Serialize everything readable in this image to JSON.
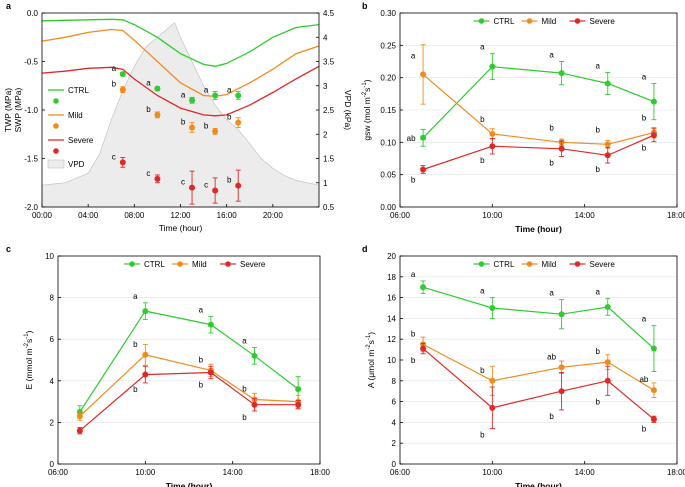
{
  "chart_data": [
    {
      "panel": "a",
      "type": "line",
      "title": "",
      "xlabel": "Time (hour)",
      "ylabel": "TWP (MPa)",
      "ylabel2": "SWP (MPa)",
      "y2label": "VPD (kPa)",
      "xlim": [
        0,
        24
      ],
      "ylim": [
        -2.0,
        0.0
      ],
      "y2lim": [
        0.5,
        4.5
      ],
      "xticks": [
        0,
        4,
        8,
        12,
        16,
        20
      ],
      "xtick_labels": [
        "00:00",
        "04:00",
        "08:00",
        "12:00",
        "16:00",
        "20:00"
      ],
      "yticks": [
        0.0,
        -0.5,
        -1.0,
        -1.5,
        -2.0
      ],
      "ytick_labels": [
        "0.0",
        "-0.5",
        "-1.0",
        "-1.5",
        "-2.0"
      ],
      "y2ticks": [
        0.5,
        1.0,
        1.5,
        2.0,
        2.5,
        3.0,
        3.5,
        4.0,
        4.5
      ],
      "y2tick_labels": [
        "0.5",
        "1",
        "1.5",
        "2",
        "2.5",
        "3",
        "3.5",
        "4",
        "4.5"
      ],
      "legend": [
        "CTRL",
        "Mild",
        "Severe",
        "VPD"
      ],
      "lines": [
        {
          "name": "CTRL",
          "color": "#2ecc2e",
          "x": [
            0,
            2,
            4,
            6,
            7,
            8,
            10,
            12,
            14,
            15,
            16,
            18,
            20,
            22,
            24
          ],
          "y": [
            -0.08,
            -0.075,
            -0.07,
            -0.065,
            -0.07,
            -0.12,
            -0.25,
            -0.42,
            -0.53,
            -0.55,
            -0.52,
            -0.4,
            -0.25,
            -0.15,
            -0.12
          ]
        },
        {
          "name": "Mild",
          "color": "#f08c1e",
          "x": [
            0,
            2,
            4,
            6,
            7,
            8,
            10,
            12,
            14,
            15,
            16,
            18,
            20,
            22,
            24
          ],
          "y": [
            -0.29,
            -0.25,
            -0.2,
            -0.17,
            -0.18,
            -0.28,
            -0.5,
            -0.72,
            -0.85,
            -0.86,
            -0.84,
            -0.72,
            -0.58,
            -0.42,
            -0.34
          ]
        },
        {
          "name": "Severe",
          "color": "#e02828",
          "x": [
            0,
            2,
            4,
            6,
            7,
            8,
            10,
            12,
            14,
            15,
            16,
            18,
            20,
            22,
            24
          ],
          "y": [
            -0.62,
            -0.6,
            -0.57,
            -0.56,
            -0.58,
            -0.68,
            -0.85,
            -0.98,
            -1.05,
            -1.06,
            -1.05,
            -0.95,
            -0.82,
            -0.68,
            -0.55
          ]
        }
      ],
      "vpd_area": {
        "name": "VPD",
        "x": [
          0,
          2,
          4,
          5,
          6,
          7,
          8,
          9,
          10,
          10.5,
          11,
          11.5,
          12,
          13,
          14,
          15,
          16,
          17,
          18,
          19,
          20,
          21,
          22,
          23,
          24
        ],
        "y": [
          0.95,
          1.0,
          1.2,
          1.6,
          2.3,
          2.9,
          3.4,
          3.8,
          4.0,
          4.1,
          4.2,
          4.3,
          4.0,
          3.5,
          3.0,
          2.6,
          2.3,
          2.1,
          1.8,
          1.5,
          1.3,
          1.15,
          1.05,
          1.0,
          0.95
        ]
      },
      "points": [
        {
          "name": "CTRL",
          "color": "#2ecc2e",
          "x": [
            7,
            10,
            13,
            15,
            17
          ],
          "y": [
            -0.63,
            -0.78,
            -0.9,
            -0.85,
            -0.85
          ],
          "err": [
            0.02,
            0.02,
            0.03,
            0.04,
            0.04
          ],
          "labels": [
            "a",
            "a",
            "a",
            "a",
            "a"
          ]
        },
        {
          "name": "Mild",
          "color": "#f08c1e",
          "x": [
            7,
            10,
            13,
            15,
            17
          ],
          "y": [
            -0.79,
            -1.05,
            -1.18,
            -1.22,
            -1.13
          ],
          "err": [
            0.03,
            0.03,
            0.05,
            0.03,
            0.05
          ],
          "labels": [
            "b",
            "b",
            "b",
            "b",
            "b"
          ]
        },
        {
          "name": "Severe",
          "color": "#e02828",
          "x": [
            7,
            10,
            13,
            15,
            17
          ],
          "y": [
            -1.54,
            -1.71,
            -1.8,
            -1.83,
            -1.78
          ],
          "err": [
            0.05,
            0.04,
            0.17,
            0.13,
            0.16
          ],
          "labels": [
            "c",
            "c",
            "c",
            "c",
            "b"
          ]
        }
      ]
    },
    {
      "panel": "b",
      "type": "line",
      "xlabel": "Time (hour)",
      "ylabel": "gsw (mol m-2 s-1)",
      "ylabel_main": "gsw (mol m",
      "ylabel_mid": "s",
      "ylabel_sup1": "-2",
      "ylabel_sup2": "-1",
      "ylabel_end": ")",
      "xlim": [
        6,
        18
      ],
      "ylim": [
        0,
        0.3
      ],
      "xticks": [
        6,
        10,
        14,
        18
      ],
      "xtick_labels": [
        "06:00",
        "10:00",
        "14:00",
        "18:00"
      ],
      "yticks": [
        0,
        0.05,
        0.1,
        0.15,
        0.2,
        0.25,
        0.3
      ],
      "ytick_labels": [
        "0.00",
        "0.05",
        "0.10",
        "0.15",
        "0.20",
        "0.25",
        "0.30"
      ],
      "legend": [
        "CTRL",
        "Mild",
        "Severe"
      ],
      "series": [
        {
          "name": "CTRL",
          "color": "#2ecc2e",
          "x": [
            7,
            10,
            13,
            15,
            17
          ],
          "y": [
            0.107,
            0.217,
            0.207,
            0.191,
            0.163
          ],
          "err": [
            0.013,
            0.02,
            0.018,
            0.017,
            0.028
          ],
          "labels": [
            "ab",
            "a",
            "a",
            "a",
            "a"
          ]
        },
        {
          "name": "Mild",
          "color": "#f08c1e",
          "x": [
            7,
            10,
            13,
            15,
            17
          ],
          "y": [
            0.205,
            0.113,
            0.1,
            0.097,
            0.115
          ],
          "err": [
            0.046,
            0.008,
            0.005,
            0.006,
            0.008
          ],
          "labels": [
            "a",
            "b",
            "b",
            "b",
            "b"
          ]
        },
        {
          "name": "Severe",
          "color": "#e02828",
          "x": [
            7,
            10,
            13,
            15,
            17
          ],
          "y": [
            0.058,
            0.094,
            0.09,
            0.08,
            0.111
          ],
          "err": [
            0.006,
            0.012,
            0.012,
            0.012,
            0.01
          ],
          "labels": [
            "b",
            "b",
            "b",
            "b",
            "b"
          ]
        }
      ]
    },
    {
      "panel": "c",
      "type": "line",
      "xlabel": "Time (hour)",
      "ylabel": "E (mmol m-2 s-1)",
      "ylabel_main": "E (mmol m",
      "ylabel_mid": "s",
      "ylabel_sup1": "-2",
      "ylabel_sup2": "-1",
      "ylabel_end": ")",
      "xlim": [
        6,
        18
      ],
      "ylim": [
        0,
        10
      ],
      "xticks": [
        6,
        10,
        14,
        18
      ],
      "xtick_labels": [
        "06:00",
        "10:00",
        "14:00",
        "18:00"
      ],
      "yticks": [
        0,
        2,
        4,
        6,
        8,
        10
      ],
      "ytick_labels": [
        "0",
        "2",
        "4",
        "6",
        "8",
        "10"
      ],
      "legend": [
        "CTRL",
        "Mild",
        "Severe"
      ],
      "series": [
        {
          "name": "CTRL",
          "color": "#2ecc2e",
          "x": [
            7,
            10,
            13,
            15,
            17
          ],
          "y": [
            2.5,
            7.35,
            6.7,
            5.2,
            3.6
          ],
          "err": [
            0.3,
            0.4,
            0.4,
            0.4,
            0.6
          ],
          "labels": [
            "",
            "a",
            "a",
            "a",
            ""
          ]
        },
        {
          "name": "Mild",
          "color": "#f08c1e",
          "x": [
            7,
            10,
            13,
            15,
            17
          ],
          "y": [
            2.3,
            5.25,
            4.5,
            3.1,
            3.0
          ],
          "err": [
            0.2,
            0.5,
            0.3,
            0.3,
            0.3
          ],
          "labels": [
            "",
            "b",
            "b",
            "b",
            ""
          ]
        },
        {
          "name": "Severe",
          "color": "#e02828",
          "x": [
            7,
            10,
            13,
            15,
            17
          ],
          "y": [
            1.6,
            4.3,
            4.4,
            2.85,
            2.85
          ],
          "err": [
            0.15,
            0.4,
            0.3,
            0.3,
            0.2
          ],
          "labels": [
            "",
            "b",
            "b",
            "b",
            ""
          ]
        }
      ]
    },
    {
      "panel": "d",
      "type": "line",
      "xlabel": "Time (hour)",
      "ylabel": "A (μmol m-2 s-1)",
      "ylabel_main": "A (μmol m",
      "ylabel_mid": "s",
      "ylabel_sup1": "-2",
      "ylabel_sup2": "-1",
      "ylabel_end": ")",
      "xlim": [
        6,
        18
      ],
      "ylim": [
        0,
        20
      ],
      "xticks": [
        6,
        10,
        14,
        18
      ],
      "xtick_labels": [
        "06:00",
        "10:00",
        "14:00",
        "18:00"
      ],
      "yticks": [
        0,
        2,
        4,
        6,
        8,
        10,
        12,
        14,
        16,
        18,
        20
      ],
      "ytick_labels": [
        "0",
        "2",
        "4",
        "6",
        "8",
        "10",
        "12",
        "14",
        "16",
        "18",
        "20"
      ],
      "legend": [
        "CTRL",
        "Mild",
        "Severe"
      ],
      "series": [
        {
          "name": "CTRL",
          "color": "#2ecc2e",
          "x": [
            7,
            10,
            13,
            15,
            17
          ],
          "y": [
            17.0,
            15.0,
            14.4,
            15.1,
            11.1
          ],
          "err": [
            0.6,
            1.0,
            1.4,
            0.8,
            2.2
          ],
          "labels": [
            "a",
            "a",
            "a",
            "a",
            "a"
          ]
        },
        {
          "name": "Mild",
          "color": "#f08c1e",
          "x": [
            7,
            10,
            13,
            15,
            17
          ],
          "y": [
            11.5,
            8.0,
            9.3,
            9.8,
            7.1
          ],
          "err": [
            0.7,
            1.4,
            0.6,
            0.7,
            0.7
          ],
          "labels": [
            "b",
            "b",
            "ab",
            "b",
            "ab"
          ]
        },
        {
          "name": "Severe",
          "color": "#e02828",
          "x": [
            7,
            10,
            13,
            15,
            17
          ],
          "y": [
            11.1,
            5.4,
            7.0,
            8.0,
            4.3
          ],
          "err": [
            0.5,
            2.0,
            1.8,
            1.4,
            0.3
          ],
          "labels": [
            "b",
            "b",
            "b",
            "b",
            "b"
          ]
        }
      ]
    }
  ]
}
